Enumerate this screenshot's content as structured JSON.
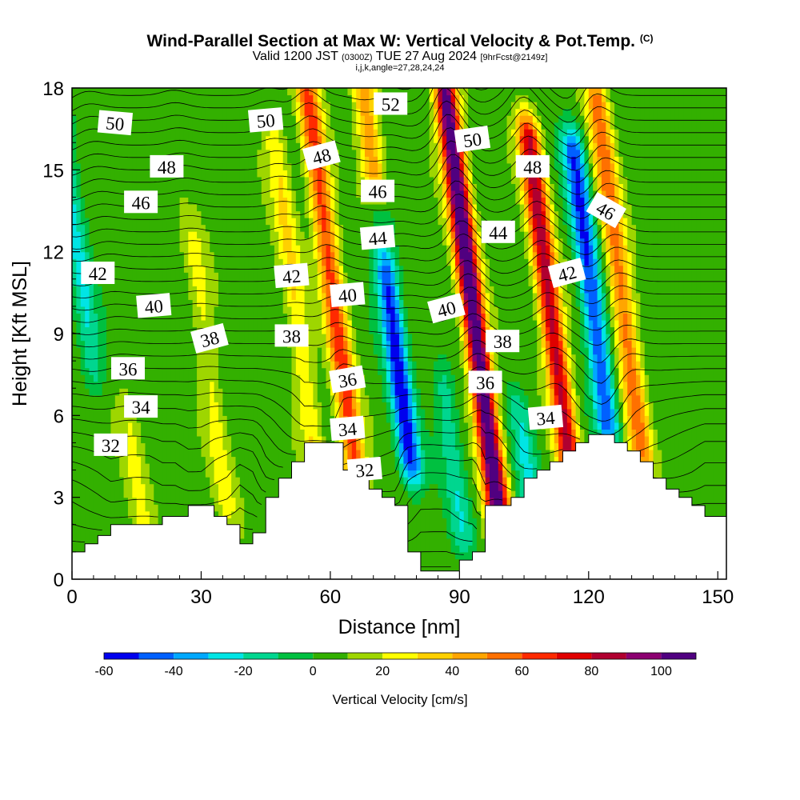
{
  "title": {
    "main": "Wind-Parallel Section at Max W: Vertical Velocity & Pot.Temp.",
    "mark": "(C)",
    "valid_prefix": "Valid 1200 JST",
    "valid_utc": "(0300Z)",
    "valid_date": "TUE 27 Aug 2024",
    "forecast": "[9hrFcst@2149z]",
    "ijk": "i,j,k,angle=27,28,24,24"
  },
  "chart_data": {
    "type": "heatmap",
    "xlabel": "Distance [nm]",
    "ylabel": "Height [Kft MSL]",
    "xlim": [
      0,
      152
    ],
    "ylim": [
      0,
      18
    ],
    "x_ticks": [
      0,
      30,
      60,
      90,
      120,
      150
    ],
    "y_ticks": [
      0,
      3,
      6,
      9,
      12,
      15,
      18
    ],
    "colorbar": {
      "label": "Vertical Velocity [cm/s]",
      "bounds": [
        -60,
        -50,
        -40,
        -30,
        -20,
        -10,
        0,
        10,
        20,
        30,
        40,
        50,
        60,
        70,
        80,
        90,
        100,
        110
      ],
      "tick_labels": [
        -60,
        -40,
        -20,
        0,
        20,
        40,
        60,
        80,
        100
      ],
      "colors": [
        "#0000ee",
        "#0060ff",
        "#00a8ff",
        "#00e5e5",
        "#00d68f",
        "#00c040",
        "#33b000",
        "#9ed600",
        "#ffff00",
        "#ffd000",
        "#ffa500",
        "#ff7000",
        "#ff2a00",
        "#e00000",
        "#b00030",
        "#8c0070",
        "#500080"
      ]
    },
    "w_features": [
      {
        "sign": "up",
        "x": 61,
        "z_bottom": 3.5,
        "z_top": 17.5,
        "peak": 60
      },
      {
        "sign": "up",
        "x": 93,
        "z_bottom": 1,
        "z_top": 17.5,
        "peak": 110
      },
      {
        "sign": "up",
        "x": 111,
        "z_bottom": 4,
        "z_top": 16,
        "peak": 80
      },
      {
        "sign": "up",
        "x": 128,
        "z_bottom": 5,
        "z_top": 17.5,
        "peak": 50
      },
      {
        "sign": "up",
        "x": 74,
        "z_bottom": 13,
        "z_top": 18,
        "peak": 45
      },
      {
        "sign": "up",
        "x": 52,
        "z_bottom": 4.5,
        "z_top": 16,
        "peak": 25
      },
      {
        "sign": "up",
        "x": 30,
        "z_bottom": 3,
        "z_top": 12,
        "peak": 18
      },
      {
        "sign": "up",
        "x": 10,
        "z_bottom": 2,
        "z_top": 6,
        "peak": 15
      },
      {
        "sign": "down",
        "x": 74,
        "z_bottom": 4.5,
        "z_top": 13,
        "peak": -60
      },
      {
        "sign": "down",
        "x": 121,
        "z_bottom": 6,
        "z_top": 15.5,
        "peak": -55
      },
      {
        "sign": "down",
        "x": 3,
        "z_bottom": 8,
        "z_top": 18,
        "peak": -25
      },
      {
        "sign": "down",
        "x": 84,
        "z_bottom": 2,
        "z_top": 7,
        "peak": -22
      },
      {
        "sign": "down",
        "x": 101,
        "z_bottom": 2.5,
        "z_top": 6,
        "peak": -25
      }
    ],
    "terrain": [
      {
        "x": 0,
        "z": 1.0
      },
      {
        "x": 3,
        "z": 1.3
      },
      {
        "x": 6,
        "z": 1.6
      },
      {
        "x": 9,
        "z": 2.0
      },
      {
        "x": 12,
        "z": 2.0
      },
      {
        "x": 15,
        "z": 2.0
      },
      {
        "x": 18,
        "z": 2.0
      },
      {
        "x": 21,
        "z": 2.3
      },
      {
        "x": 24,
        "z": 2.3
      },
      {
        "x": 27,
        "z": 2.7
      },
      {
        "x": 30,
        "z": 2.7
      },
      {
        "x": 33,
        "z": 2.3
      },
      {
        "x": 36,
        "z": 2.0
      },
      {
        "x": 39,
        "z": 1.3
      },
      {
        "x": 42,
        "z": 1.7
      },
      {
        "x": 45,
        "z": 3.0
      },
      {
        "x": 48,
        "z": 3.7
      },
      {
        "x": 51,
        "z": 4.3
      },
      {
        "x": 54,
        "z": 5.0
      },
      {
        "x": 57,
        "z": 5.0
      },
      {
        "x": 60,
        "z": 5.0
      },
      {
        "x": 63,
        "z": 4.0
      },
      {
        "x": 66,
        "z": 3.7
      },
      {
        "x": 69,
        "z": 3.3
      },
      {
        "x": 72,
        "z": 3.0
      },
      {
        "x": 75,
        "z": 2.7
      },
      {
        "x": 78,
        "z": 1.0
      },
      {
        "x": 81,
        "z": 0.3
      },
      {
        "x": 84,
        "z": 0.3
      },
      {
        "x": 87,
        "z": 0.3
      },
      {
        "x": 90,
        "z": 0.7
      },
      {
        "x": 93,
        "z": 1.0
      },
      {
        "x": 96,
        "z": 2.7
      },
      {
        "x": 99,
        "z": 2.7
      },
      {
        "x": 102,
        "z": 3.0
      },
      {
        "x": 105,
        "z": 3.7
      },
      {
        "x": 108,
        "z": 4.0
      },
      {
        "x": 111,
        "z": 4.3
      },
      {
        "x": 114,
        "z": 4.7
      },
      {
        "x": 117,
        "z": 5.0
      },
      {
        "x": 120,
        "z": 5.3
      },
      {
        "x": 123,
        "z": 5.3
      },
      {
        "x": 126,
        "z": 5.0
      },
      {
        "x": 129,
        "z": 4.7
      },
      {
        "x": 132,
        "z": 4.3
      },
      {
        "x": 135,
        "z": 3.7
      },
      {
        "x": 138,
        "z": 3.3
      },
      {
        "x": 141,
        "z": 3.0
      },
      {
        "x": 144,
        "z": 2.7
      },
      {
        "x": 147,
        "z": 2.3
      },
      {
        "x": 150,
        "z": 2.3
      },
      {
        "x": 152,
        "z": 2.3
      }
    ],
    "theta": {
      "levels": [
        31.5,
        32.0,
        32.5,
        33.0,
        33.5,
        34.0,
        34.5,
        35.0,
        35.5,
        36.0,
        36.5,
        37.0,
        37.5,
        38.0,
        38.5,
        39.0,
        39.5,
        40.0,
        40.5,
        41.0,
        41.5,
        42.0,
        42.5,
        43.0,
        43.5,
        44.0,
        44.5,
        45.0,
        45.5,
        46.0,
        46.5,
        47.0,
        47.5,
        48.0,
        48.5,
        49.0,
        49.5,
        50.0,
        50.5,
        51.0,
        51.5,
        52.0
      ],
      "labels": [
        {
          "text": "50",
          "x": 10,
          "z": 16.7,
          "angle": 5
        },
        {
          "text": "50",
          "x": 45,
          "z": 16.8,
          "angle": -5
        },
        {
          "text": "52",
          "x": 74,
          "z": 17.4,
          "angle": 0
        },
        {
          "text": "48",
          "x": 22,
          "z": 15.1,
          "angle": 0
        },
        {
          "text": "48",
          "x": 58,
          "z": 15.5,
          "angle": -15
        },
        {
          "text": "50",
          "x": 93,
          "z": 16.1,
          "angle": -8
        },
        {
          "text": "48",
          "x": 107,
          "z": 15.1,
          "angle": 0
        },
        {
          "text": "46",
          "x": 16,
          "z": 13.8,
          "angle": 0
        },
        {
          "text": "46",
          "x": 71,
          "z": 14.2,
          "angle": 0
        },
        {
          "text": "46",
          "x": 124,
          "z": 13.5,
          "angle": 30
        },
        {
          "text": "44",
          "x": 71,
          "z": 12.5,
          "angle": -5
        },
        {
          "text": "44",
          "x": 99,
          "z": 12.7,
          "angle": 0
        },
        {
          "text": "42",
          "x": 6,
          "z": 11.2,
          "angle": 0
        },
        {
          "text": "42",
          "x": 51,
          "z": 11.1,
          "angle": -5
        },
        {
          "text": "42",
          "x": 115,
          "z": 11.2,
          "angle": -15
        },
        {
          "text": "40",
          "x": 19,
          "z": 10.0,
          "angle": -5
        },
        {
          "text": "40",
          "x": 64,
          "z": 10.4,
          "angle": -5
        },
        {
          "text": "40",
          "x": 87,
          "z": 9.9,
          "angle": -15
        },
        {
          "text": "38",
          "x": 32,
          "z": 8.8,
          "angle": -15
        },
        {
          "text": "38",
          "x": 51,
          "z": 8.9,
          "angle": 0
        },
        {
          "text": "38",
          "x": 100,
          "z": 8.7,
          "angle": 0
        },
        {
          "text": "36",
          "x": 13,
          "z": 7.7,
          "angle": 0
        },
        {
          "text": "36",
          "x": 64,
          "z": 7.3,
          "angle": -10
        },
        {
          "text": "36",
          "x": 96,
          "z": 7.2,
          "angle": 0
        },
        {
          "text": "34",
          "x": 16,
          "z": 6.3,
          "angle": 0
        },
        {
          "text": "34",
          "x": 64,
          "z": 5.5,
          "angle": -5
        },
        {
          "text": "34",
          "x": 110,
          "z": 5.9,
          "angle": -5
        },
        {
          "text": "32",
          "x": 9,
          "z": 4.9,
          "angle": 0
        },
        {
          "text": "32",
          "x": 68,
          "z": 4.0,
          "angle": -5
        }
      ]
    }
  }
}
